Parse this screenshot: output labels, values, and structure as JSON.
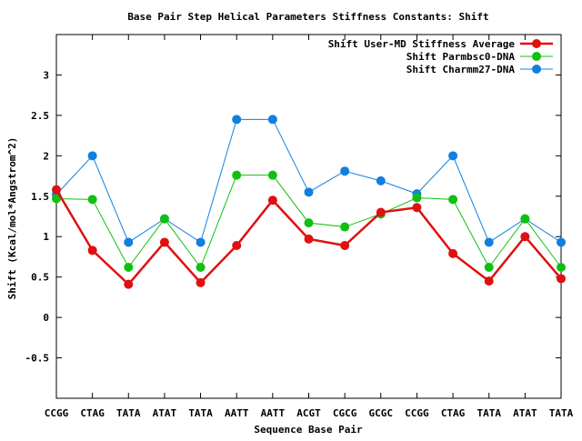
{
  "chart_data": {
    "type": "line",
    "title": "Base Pair Step Helical Parameters Stiffness Constants: Shift",
    "xlabel": "Sequence Base Pair",
    "ylabel": "Shift (Kcal/mol*Angstrom^2)",
    "categories": [
      "CCGG",
      "CTAG",
      "TATA",
      "ATAT",
      "TATA",
      "AATT",
      "AATT",
      "ACGT",
      "CGCG",
      "GCGC",
      "CCGG",
      "CTAG",
      "TATA",
      "ATAT",
      "TATA"
    ],
    "ylim": [
      -1,
      3.5
    ],
    "yticks": [
      -0.5,
      0,
      0.5,
      1,
      1.5,
      2,
      2.5,
      3
    ],
    "ytick_labels": [
      "-0.5",
      "0",
      "0.5",
      "1",
      "1.5",
      "2",
      "2.5",
      "3"
    ],
    "grid": false,
    "legend_position": "top-right",
    "series": [
      {
        "name": "Shift User-MD Stiffness Average",
        "color": "#e01010",
        "values": [
          1.58,
          0.83,
          0.41,
          0.93,
          0.43,
          0.89,
          1.45,
          0.97,
          0.89,
          1.3,
          1.36,
          0.79,
          0.45,
          1.0,
          0.48
        ]
      },
      {
        "name": "Shift Parmbsc0-DNA",
        "color": "#10c010",
        "values": [
          1.47,
          1.46,
          0.62,
          1.22,
          0.62,
          1.76,
          1.76,
          1.17,
          1.12,
          1.28,
          1.48,
          1.46,
          0.62,
          1.22,
          0.62
        ]
      },
      {
        "name": "Shift Charmm27-DNA",
        "color": "#1080e0",
        "values": [
          1.52,
          2.0,
          0.93,
          1.22,
          0.93,
          2.45,
          2.45,
          1.55,
          1.81,
          1.69,
          1.53,
          2.0,
          0.93,
          1.22,
          0.93
        ]
      }
    ]
  }
}
